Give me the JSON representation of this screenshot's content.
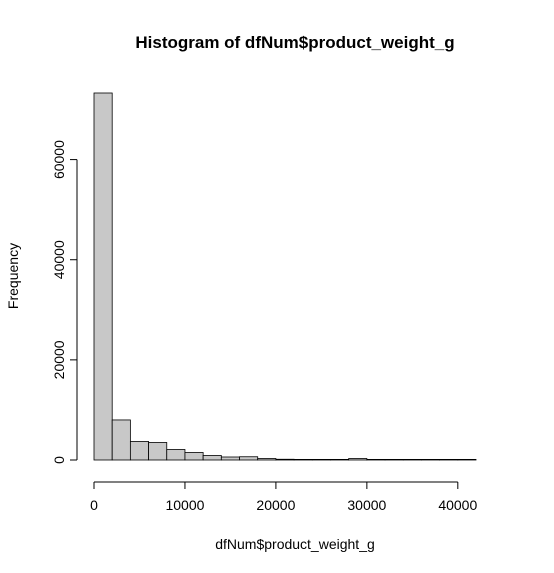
{
  "chart_data": {
    "type": "bar",
    "title": "Histogram of dfNum$product_weight_g",
    "xlabel": "dfNum$product_weight_g",
    "ylabel": "Frequency",
    "bin_width": 2000,
    "bins": [
      {
        "start": 0,
        "end": 2000,
        "count": 73300
      },
      {
        "start": 2000,
        "end": 4000,
        "count": 8000
      },
      {
        "start": 4000,
        "end": 6000,
        "count": 3700
      },
      {
        "start": 6000,
        "end": 8000,
        "count": 3500
      },
      {
        "start": 8000,
        "end": 10000,
        "count": 2100
      },
      {
        "start": 10000,
        "end": 12000,
        "count": 1500
      },
      {
        "start": 12000,
        "end": 14000,
        "count": 900
      },
      {
        "start": 14000,
        "end": 16000,
        "count": 600
      },
      {
        "start": 16000,
        "end": 18000,
        "count": 650
      },
      {
        "start": 18000,
        "end": 20000,
        "count": 300
      },
      {
        "start": 20000,
        "end": 22000,
        "count": 150
      },
      {
        "start": 22000,
        "end": 24000,
        "count": 120
      },
      {
        "start": 24000,
        "end": 26000,
        "count": 100
      },
      {
        "start": 26000,
        "end": 28000,
        "count": 60
      },
      {
        "start": 28000,
        "end": 30000,
        "count": 300
      },
      {
        "start": 30000,
        "end": 32000,
        "count": 20
      },
      {
        "start": 32000,
        "end": 34000,
        "count": 10
      },
      {
        "start": 34000,
        "end": 36000,
        "count": 10
      },
      {
        "start": 36000,
        "end": 38000,
        "count": 5
      },
      {
        "start": 38000,
        "end": 40000,
        "count": 5
      },
      {
        "start": 40000,
        "end": 42000,
        "count": 5
      }
    ],
    "x_ticks": [
      {
        "value": 0,
        "label": "0"
      },
      {
        "value": 10000,
        "label": "10000"
      },
      {
        "value": 20000,
        "label": "20000"
      },
      {
        "value": 30000,
        "label": "30000"
      },
      {
        "value": 40000,
        "label": "40000"
      }
    ],
    "y_ticks": [
      {
        "value": 0,
        "label": "0"
      },
      {
        "value": 20000,
        "label": "20000"
      },
      {
        "value": 40000,
        "label": "40000"
      },
      {
        "value": 60000,
        "label": "60000"
      }
    ],
    "xlim": [
      0,
      42000
    ],
    "ylim": [
      0,
      73300
    ],
    "grid": false,
    "bar_fill": "#c8c8c8",
    "bar_stroke": "#000000"
  }
}
